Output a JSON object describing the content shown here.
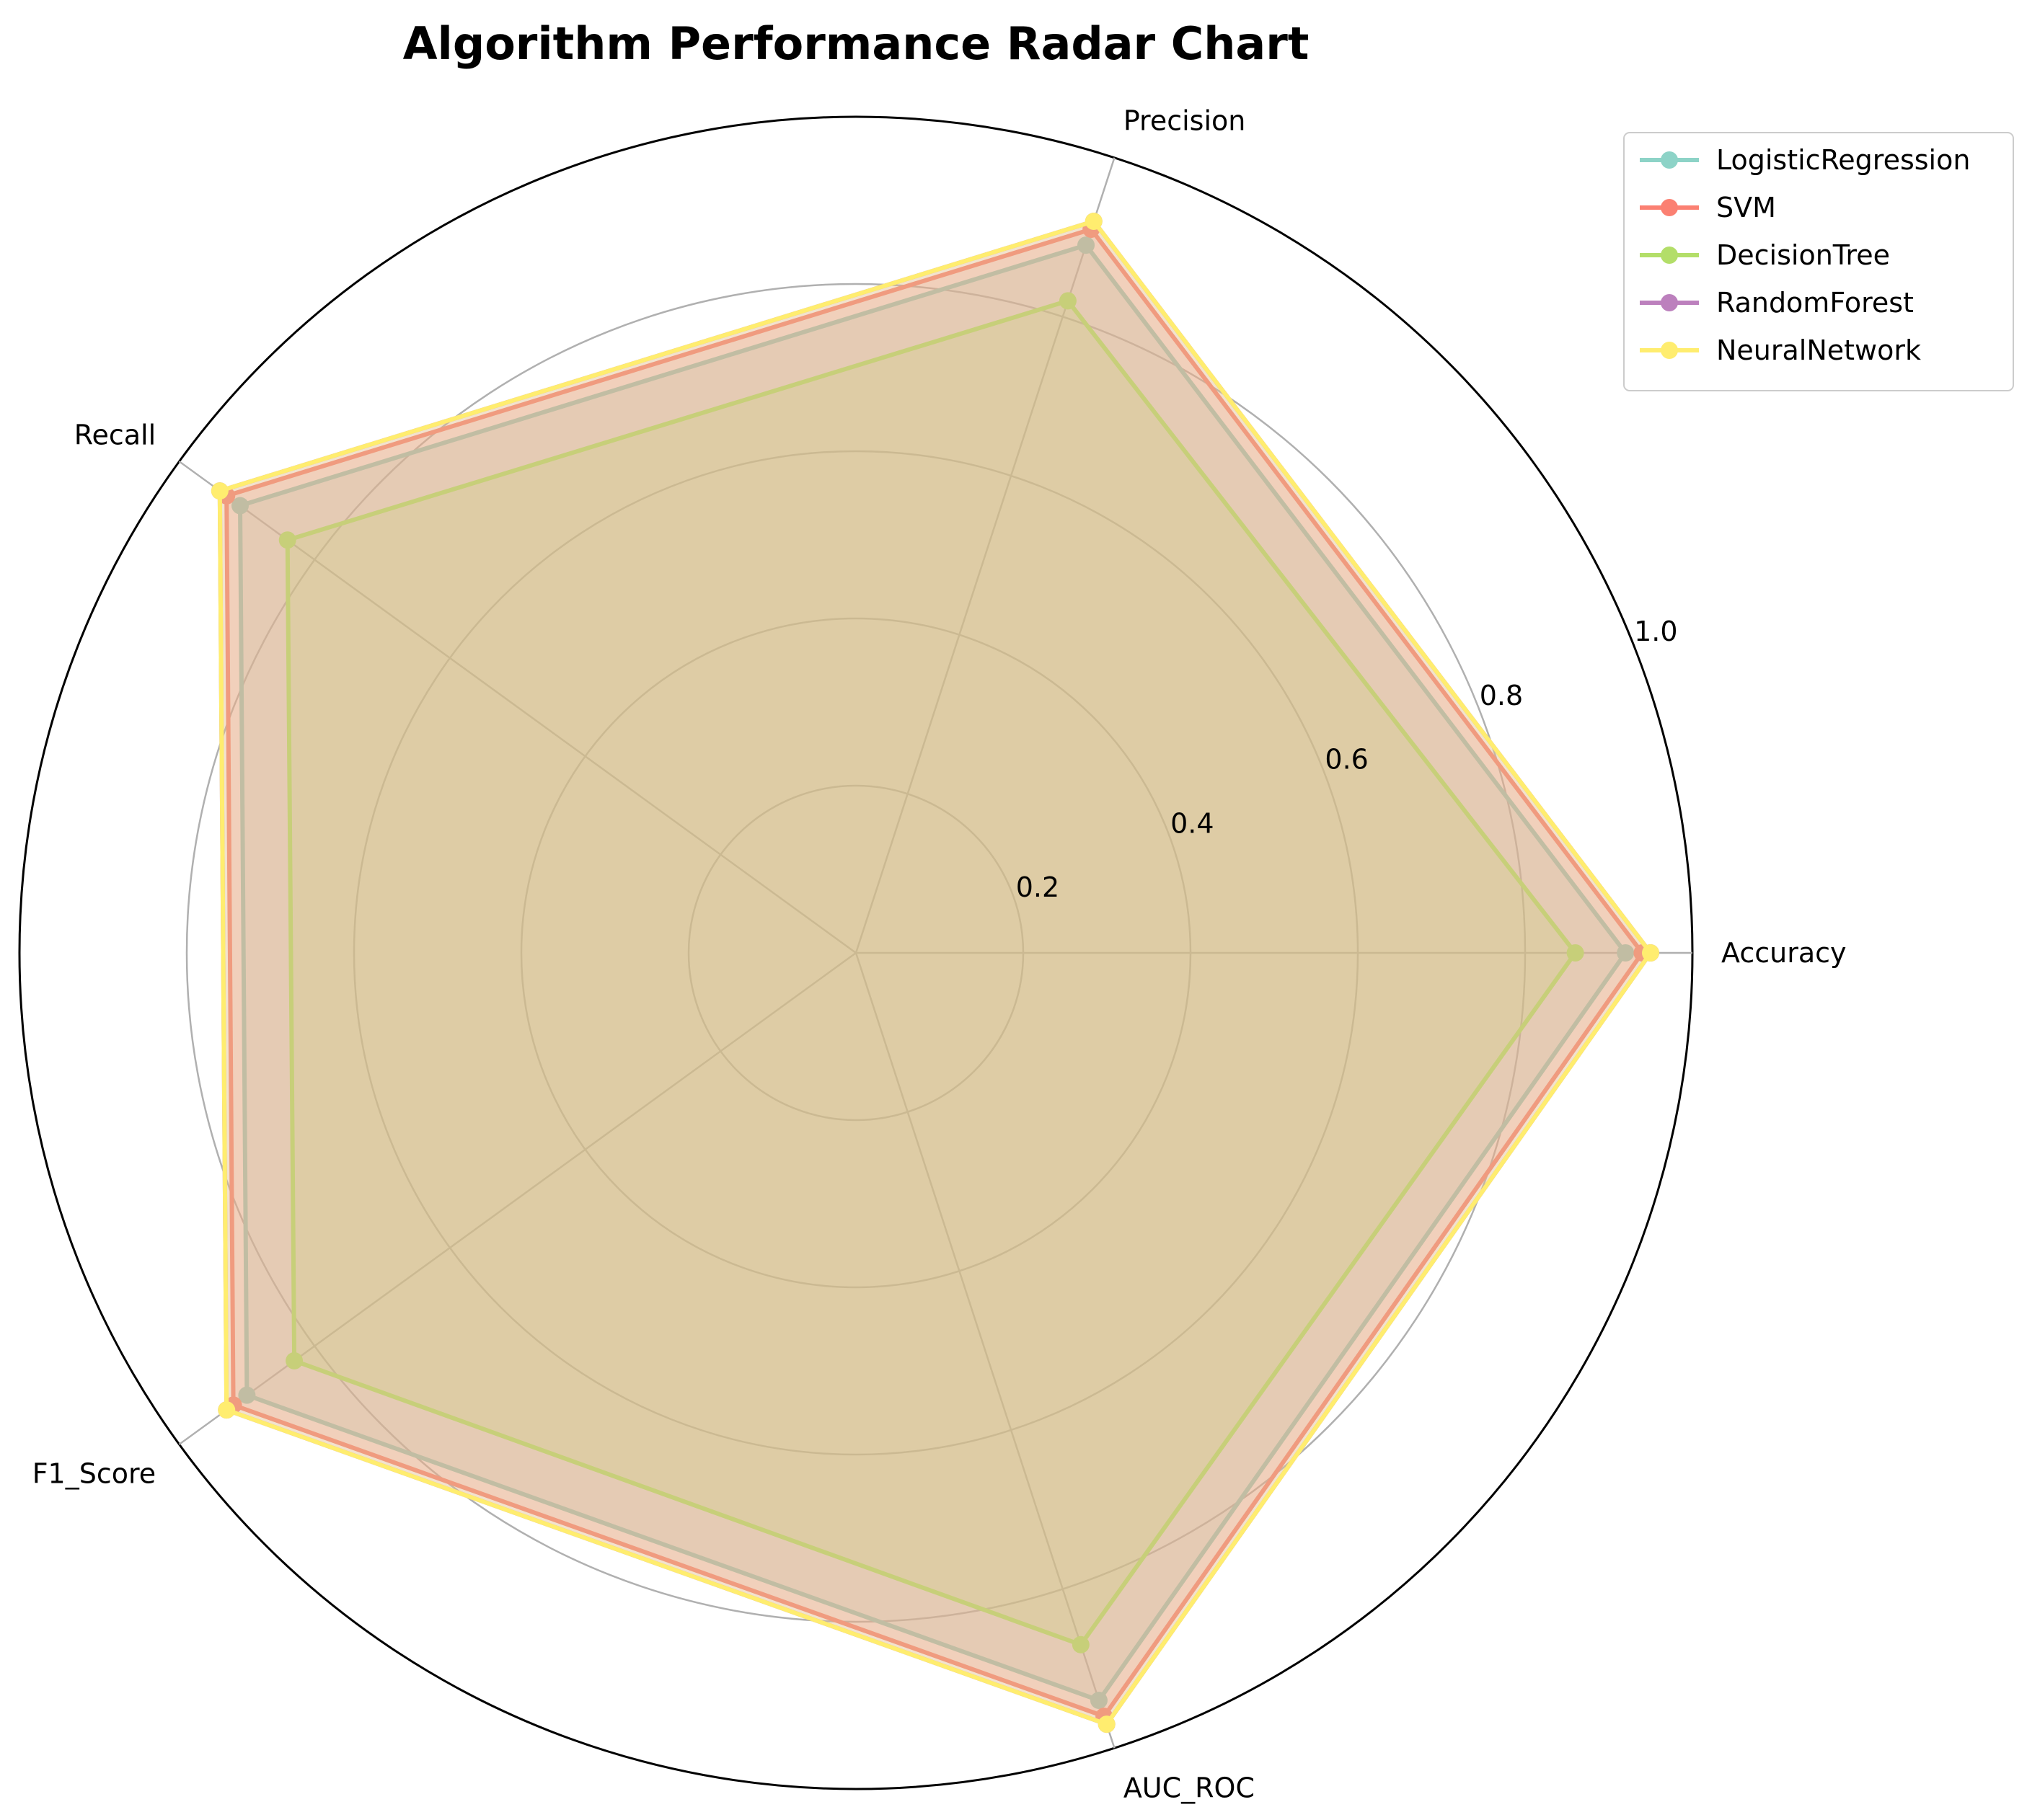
{
  "chart_data": {
    "type": "radar",
    "title": "Algorithm Performance Radar Chart",
    "axes": [
      "Accuracy",
      "Precision",
      "Recall",
      "F1_Score",
      "AUC_ROC"
    ],
    "rlim": [
      0,
      1.0
    ],
    "rticks": [
      0.2,
      0.4,
      0.6,
      0.8,
      1.0
    ],
    "rtick_labels": [
      "0.2",
      "0.4",
      "0.6",
      "0.8",
      "1.0"
    ],
    "grid": true,
    "legend_position": "top-right",
    "series": [
      {
        "name": "LogisticRegression",
        "color": "#8dd3c7",
        "values": [
          0.92,
          0.89,
          0.91,
          0.9,
          0.94
        ]
      },
      {
        "name": "SVM",
        "color": "#fb8072",
        "values": [
          0.94,
          0.91,
          0.93,
          0.92,
          0.96
        ]
      },
      {
        "name": "DecisionTree",
        "color": "#b3de69",
        "values": [
          0.86,
          0.82,
          0.84,
          0.83,
          0.87
        ]
      },
      {
        "name": "RandomForest",
        "color": "#bc80bd",
        "values": [
          0.95,
          0.92,
          0.94,
          0.93,
          0.97
        ]
      },
      {
        "name": "NeuralNetwork",
        "color": "#ffed6f",
        "values": [
          0.95,
          0.92,
          0.94,
          0.93,
          0.97
        ]
      }
    ]
  }
}
